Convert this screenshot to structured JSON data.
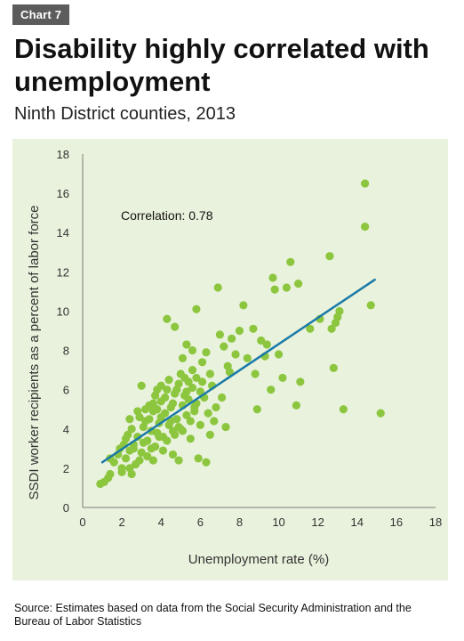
{
  "header": {
    "tag": "Chart 7",
    "title": "Disability highly correlated with unemployment",
    "subtitle": "Ninth District counties, 2013"
  },
  "footer": {
    "source": "Source: Estimates based on data from the Social Security Administration and the Bureau of Labor Statistics"
  },
  "colors": {
    "panel_background": "#e9f2dc",
    "points": "#8cc63f",
    "trend_line": "#1a7aa8",
    "tag_background": "#5c5c5c"
  },
  "chart_data": {
    "type": "scatter",
    "title": "Disability highly correlated with unemployment",
    "subtitle": "Ninth District counties, 2013",
    "xlabel": "Unemployment rate (%)",
    "ylabel": "SSDI worker recipients as a percent of labor force",
    "xlim": [
      0,
      18
    ],
    "ylim": [
      0,
      18
    ],
    "xticks": [
      0,
      2,
      4,
      6,
      8,
      10,
      12,
      14,
      16,
      18
    ],
    "yticks": [
      0,
      2,
      4,
      6,
      8,
      10,
      12,
      14,
      16,
      18
    ],
    "grid": false,
    "annotation": "Correlation: 0.78",
    "trendline": {
      "x": [
        1.0,
        14.9
      ],
      "y": [
        2.3,
        11.6
      ]
    },
    "series": [
      {
        "points": [
          [
            0.9,
            1.2
          ],
          [
            1.1,
            1.3
          ],
          [
            1.3,
            1.5
          ],
          [
            1.4,
            1.7
          ],
          [
            1.4,
            2.5
          ],
          [
            1.6,
            2.3
          ],
          [
            1.8,
            2.7
          ],
          [
            2.0,
            2.0
          ],
          [
            2.1,
            3.2
          ],
          [
            2.2,
            2.5
          ],
          [
            2.3,
            3.7
          ],
          [
            2.4,
            2.9
          ],
          [
            2.5,
            4.0
          ],
          [
            2.6,
            3.2
          ],
          [
            2.7,
            2.2
          ],
          [
            2.8,
            3.6
          ],
          [
            2.9,
            4.6
          ],
          [
            3.0,
            2.8
          ],
          [
            3.1,
            4.1
          ],
          [
            3.2,
            5.0
          ],
          [
            3.3,
            3.4
          ],
          [
            3.4,
            4.5
          ],
          [
            3.5,
            3.0
          ],
          [
            3.6,
            4.9
          ],
          [
            3.7,
            5.7
          ],
          [
            3.8,
            3.8
          ],
          [
            3.9,
            4.3
          ],
          [
            4.0,
            5.4
          ],
          [
            4.1,
            3.6
          ],
          [
            4.2,
            4.8
          ],
          [
            4.3,
            6.0
          ],
          [
            4.4,
            4.2
          ],
          [
            4.5,
            5.1
          ],
          [
            4.6,
            3.9
          ],
          [
            4.7,
            5.8
          ],
          [
            4.8,
            4.5
          ],
          [
            4.9,
            6.3
          ],
          [
            5.0,
            4.0
          ],
          [
            5.1,
            5.2
          ],
          [
            5.2,
            6.6
          ],
          [
            5.3,
            4.7
          ],
          [
            5.4,
            5.5
          ],
          [
            5.5,
            3.5
          ],
          [
            5.6,
            6.1
          ],
          [
            5.7,
            4.9
          ],
          [
            5.8,
            5.3
          ],
          [
            6.0,
            4.2
          ],
          [
            6.2,
            5.6
          ],
          [
            6.4,
            4.8
          ],
          [
            6.6,
            6.2
          ],
          [
            2.4,
            2.0
          ],
          [
            2.6,
            3.0
          ],
          [
            2.9,
            2.4
          ],
          [
            3.1,
            3.3
          ],
          [
            3.3,
            2.6
          ],
          [
            3.5,
            3.9
          ],
          [
            3.7,
            3.1
          ],
          [
            3.9,
            3.6
          ],
          [
            4.1,
            2.9
          ],
          [
            4.3,
            3.4
          ],
          [
            4.5,
            4.4
          ],
          [
            4.7,
            3.7
          ],
          [
            4.9,
            4.1
          ],
          [
            5.1,
            3.9
          ],
          [
            5.3,
            5.9
          ],
          [
            3.6,
            5.3
          ],
          [
            3.8,
            6.0
          ],
          [
            4.0,
            6.2
          ],
          [
            4.2,
            5.6
          ],
          [
            4.4,
            6.5
          ],
          [
            4.6,
            5.3
          ],
          [
            4.8,
            6.0
          ],
          [
            5.0,
            6.8
          ],
          [
            5.2,
            5.7
          ],
          [
            5.4,
            6.4
          ],
          [
            5.6,
            7.0
          ],
          [
            5.8,
            6.6
          ],
          [
            3.2,
            4.4
          ],
          [
            3.4,
            5.2
          ],
          [
            2.8,
            4.9
          ],
          [
            4.3,
            9.6
          ],
          [
            4.7,
            9.2
          ],
          [
            5.1,
            7.6
          ],
          [
            5.3,
            8.3
          ],
          [
            5.6,
            8.0
          ],
          [
            5.8,
            10.1
          ],
          [
            6.1,
            7.4
          ],
          [
            6.3,
            7.9
          ],
          [
            6.5,
            6.8
          ],
          [
            6.9,
            11.2
          ],
          [
            7.0,
            8.8
          ],
          [
            7.2,
            8.2
          ],
          [
            7.4,
            7.2
          ],
          [
            7.6,
            8.6
          ],
          [
            7.8,
            7.8
          ],
          [
            8.0,
            9.0
          ],
          [
            8.2,
            10.3
          ],
          [
            8.4,
            7.6
          ],
          [
            8.7,
            9.1
          ],
          [
            8.8,
            6.8
          ],
          [
            8.9,
            5.0
          ],
          [
            9.1,
            8.5
          ],
          [
            9.3,
            7.7
          ],
          [
            9.4,
            8.3
          ],
          [
            9.6,
            6.0
          ],
          [
            9.7,
            11.7
          ],
          [
            9.8,
            11.1
          ],
          [
            10.0,
            7.8
          ],
          [
            10.2,
            6.6
          ],
          [
            10.4,
            11.2
          ],
          [
            10.6,
            12.5
          ],
          [
            10.9,
            5.2
          ],
          [
            11.0,
            11.4
          ],
          [
            11.1,
            6.4
          ],
          [
            11.6,
            9.1
          ],
          [
            12.1,
            9.6
          ],
          [
            12.6,
            12.8
          ],
          [
            12.7,
            9.1
          ],
          [
            12.8,
            7.1
          ],
          [
            12.9,
            9.4
          ],
          [
            13.0,
            9.7
          ],
          [
            13.1,
            10.0
          ],
          [
            13.3,
            5.0
          ],
          [
            14.4,
            16.5
          ],
          [
            14.4,
            14.3
          ],
          [
            14.7,
            10.3
          ],
          [
            15.2,
            4.8
          ],
          [
            3.0,
            6.2
          ],
          [
            2.4,
            4.5
          ],
          [
            5.9,
            2.5
          ],
          [
            6.3,
            2.3
          ],
          [
            4.9,
            2.4
          ],
          [
            2.2,
            3.5
          ],
          [
            1.9,
            3.0
          ],
          [
            6.7,
            4.4
          ],
          [
            7.1,
            5.6
          ],
          [
            7.5,
            6.9
          ],
          [
            6.8,
            5.1
          ],
          [
            7.3,
            4.1
          ],
          [
            6.0,
            5.9
          ],
          [
            6.5,
            3.7
          ],
          [
            3.6,
            2.4
          ],
          [
            2.5,
            1.7
          ],
          [
            2.0,
            1.8
          ],
          [
            4.6,
            2.7
          ],
          [
            5.5,
            4.4
          ],
          [
            5.7,
            5.1
          ],
          [
            6.1,
            6.4
          ],
          [
            3.8,
            5.0
          ],
          [
            4.0,
            4.6
          ]
        ]
      }
    ]
  }
}
